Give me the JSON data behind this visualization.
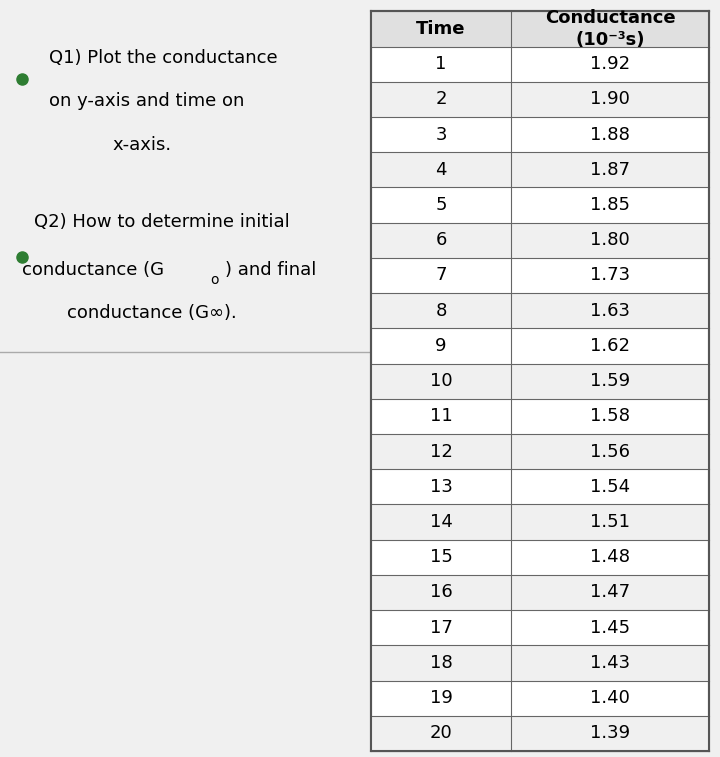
{
  "time": [
    1,
    2,
    3,
    4,
    5,
    6,
    7,
    8,
    9,
    10,
    11,
    12,
    13,
    14,
    15,
    16,
    17,
    18,
    19,
    20
  ],
  "conductance": [
    1.92,
    1.9,
    1.88,
    1.87,
    1.85,
    1.8,
    1.73,
    1.63,
    1.62,
    1.59,
    1.58,
    1.56,
    1.54,
    1.51,
    1.48,
    1.47,
    1.45,
    1.43,
    1.4,
    1.39
  ],
  "bullet_color": "#2e7d32",
  "header_bg": "#e0e0e0",
  "table_bg": "#ffffff",
  "text_color": "#000000",
  "bg_color": "#f0f0f0",
  "sep_line_color": "#aaaaaa",
  "grid_color": "#666666",
  "font_size_text": 13,
  "font_size_table": 13,
  "font_size_header": 13
}
